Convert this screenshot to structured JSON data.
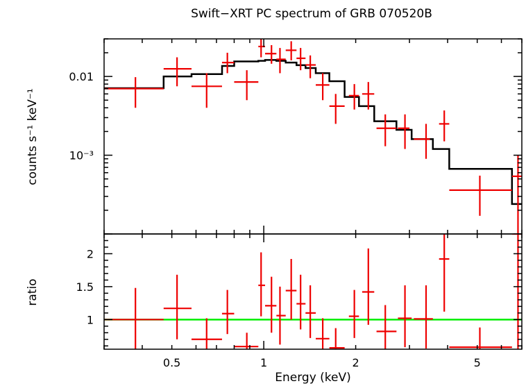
{
  "chart_data": [
    {
      "type": "scatter",
      "title": "Swift−XRT PC spectrum of GRB 070520B",
      "ylabel": "counts s⁻¹ keV⁻¹",
      "xlabel": "",
      "xscale": "log",
      "yscale": "log",
      "xlim": [
        0.3,
        7.0
      ],
      "ylim": [
        0.0001,
        0.03
      ],
      "ytick_labels": [
        {
          "value": 0.01,
          "label": "0.01"
        },
        {
          "value": 0.001,
          "label": "10⁻³"
        }
      ],
      "series": [
        {
          "role": "data",
          "color": "#ee0000",
          "points": [
            {
              "x": 0.38,
              "xlo": 0.3,
              "xhi": 0.47,
              "y": 0.007,
              "ylo": 0.004,
              "yhi": 0.0098
            },
            {
              "x": 0.52,
              "xlo": 0.47,
              "xhi": 0.58,
              "y": 0.0125,
              "ylo": 0.0075,
              "yhi": 0.0175
            },
            {
              "x": 0.65,
              "xlo": 0.58,
              "xhi": 0.73,
              "y": 0.0075,
              "ylo": 0.004,
              "yhi": 0.011
            },
            {
              "x": 0.76,
              "xlo": 0.73,
              "xhi": 0.8,
              "y": 0.015,
              "ylo": 0.011,
              "yhi": 0.02
            },
            {
              "x": 0.88,
              "xlo": 0.8,
              "xhi": 0.96,
              "y": 0.0085,
              "ylo": 0.005,
              "yhi": 0.012
            },
            {
              "x": 0.98,
              "xlo": 0.96,
              "xhi": 1.01,
              "y": 0.024,
              "ylo": 0.0175,
              "yhi": 0.03
            },
            {
              "x": 1.06,
              "xlo": 1.01,
              "xhi": 1.1,
              "y": 0.0195,
              "ylo": 0.0145,
              "yhi": 0.025
            },
            {
              "x": 1.13,
              "xlo": 1.1,
              "xhi": 1.18,
              "y": 0.0165,
              "ylo": 0.011,
              "yhi": 0.023
            },
            {
              "x": 1.23,
              "xlo": 1.18,
              "xhi": 1.28,
              "y": 0.0215,
              "ylo": 0.016,
              "yhi": 0.028
            },
            {
              "x": 1.32,
              "xlo": 1.28,
              "xhi": 1.37,
              "y": 0.017,
              "ylo": 0.012,
              "yhi": 0.023
            },
            {
              "x": 1.42,
              "xlo": 1.37,
              "xhi": 1.48,
              "y": 0.014,
              "ylo": 0.0095,
              "yhi": 0.0185
            },
            {
              "x": 1.56,
              "xlo": 1.48,
              "xhi": 1.64,
              "y": 0.0078,
              "ylo": 0.005,
              "yhi": 0.011
            },
            {
              "x": 1.72,
              "xlo": 1.64,
              "xhi": 1.84,
              "y": 0.0042,
              "ylo": 0.0025,
              "yhi": 0.006
            },
            {
              "x": 1.98,
              "xlo": 1.9,
              "xhi": 2.05,
              "y": 0.0057,
              "ylo": 0.0038,
              "yhi": 0.008
            },
            {
              "x": 2.2,
              "xlo": 2.1,
              "xhi": 2.3,
              "y": 0.006,
              "ylo": 0.0038,
              "yhi": 0.0085
            },
            {
              "x": 2.5,
              "xlo": 2.34,
              "xhi": 2.72,
              "y": 0.0022,
              "ylo": 0.0013,
              "yhi": 0.0033
            },
            {
              "x": 2.9,
              "xlo": 2.75,
              "xhi": 3.0,
              "y": 0.0022,
              "ylo": 0.0012,
              "yhi": 0.0033
            },
            {
              "x": 3.4,
              "xlo": 3.1,
              "xhi": 3.5,
              "y": 0.0016,
              "ylo": 0.0009,
              "yhi": 0.0025
            },
            {
              "x": 3.9,
              "xlo": 3.75,
              "xhi": 4.05,
              "y": 0.0025,
              "ylo": 0.0015,
              "yhi": 0.0037
            },
            {
              "x": 5.1,
              "xlo": 4.05,
              "xhi": 6.5,
              "y": 0.00036,
              "ylo": 0.00017,
              "yhi": 0.00055
            },
            {
              "x": 6.8,
              "xlo": 6.5,
              "xhi": 7.0,
              "y": 0.00054,
              "ylo": 0.0001,
              "yhi": 0.001
            }
          ]
        },
        {
          "role": "model",
          "color": "#000000",
          "steps": [
            {
              "x0": 0.3,
              "x1": 0.47,
              "y": 0.0071
            },
            {
              "x0": 0.47,
              "x1": 0.58,
              "y": 0.01
            },
            {
              "x0": 0.58,
              "x1": 0.73,
              "y": 0.0107
            },
            {
              "x0": 0.73,
              "x1": 0.8,
              "y": 0.0136
            },
            {
              "x0": 0.8,
              "x1": 0.96,
              "y": 0.0155
            },
            {
              "x0": 0.96,
              "x1": 1.01,
              "y": 0.0158
            },
            {
              "x0": 1.01,
              "x1": 1.1,
              "y": 0.0162
            },
            {
              "x0": 1.1,
              "x1": 1.18,
              "y": 0.0158
            },
            {
              "x0": 1.18,
              "x1": 1.28,
              "y": 0.015
            },
            {
              "x0": 1.28,
              "x1": 1.37,
              "y": 0.0139
            },
            {
              "x0": 1.37,
              "x1": 1.48,
              "y": 0.0128
            },
            {
              "x0": 1.48,
              "x1": 1.64,
              "y": 0.011
            },
            {
              "x0": 1.64,
              "x1": 1.84,
              "y": 0.0087
            },
            {
              "x0": 1.84,
              "x1": 2.05,
              "y": 0.0055
            },
            {
              "x0": 2.05,
              "x1": 2.3,
              "y": 0.0042
            },
            {
              "x0": 2.3,
              "x1": 2.72,
              "y": 0.0027
            },
            {
              "x0": 2.72,
              "x1": 3.05,
              "y": 0.0021
            },
            {
              "x0": 3.05,
              "x1": 3.58,
              "y": 0.0016
            },
            {
              "x0": 3.58,
              "x1": 4.05,
              "y": 0.0012
            },
            {
              "x0": 4.05,
              "x1": 6.5,
              "y": 0.00067
            },
            {
              "x0": 6.5,
              "x1": 7.0,
              "y": 0.00024
            }
          ]
        }
      ]
    },
    {
      "type": "scatter",
      "title": "",
      "ylabel": "ratio",
      "xlabel": "Energy (keV)",
      "xscale": "log",
      "yscale": "linear",
      "xlim": [
        0.3,
        7.0
      ],
      "ylim": [
        0.55,
        2.3
      ],
      "xtick_labels": [
        {
          "value": 0.5,
          "label": "0.5"
        },
        {
          "value": 1,
          "label": "1"
        },
        {
          "value": 2,
          "label": "2"
        },
        {
          "value": 5,
          "label": "5"
        }
      ],
      "ytick_labels": [
        {
          "value": 1,
          "label": "1"
        },
        {
          "value": 1.5,
          "label": "1.5"
        },
        {
          "value": 2,
          "label": "2"
        }
      ],
      "reference_line": {
        "y": 1.0,
        "color": "#00ee00"
      },
      "series": [
        {
          "role": "ratio",
          "color": "#ee0000",
          "points": [
            {
              "x": 0.38,
              "xlo": 0.3,
              "xhi": 0.47,
              "y": 1.0,
              "ylo": 0.55,
              "yhi": 1.48
            },
            {
              "x": 0.52,
              "xlo": 0.47,
              "xhi": 0.58,
              "y": 1.17,
              "ylo": 0.7,
              "yhi": 1.68
            },
            {
              "x": 0.65,
              "xlo": 0.58,
              "xhi": 0.73,
              "y": 0.7,
              "ylo": 0.55,
              "yhi": 1.02
            },
            {
              "x": 0.76,
              "xlo": 0.73,
              "xhi": 0.8,
              "y": 1.09,
              "ylo": 0.78,
              "yhi": 1.45
            },
            {
              "x": 0.88,
              "xlo": 0.8,
              "xhi": 0.96,
              "y": 0.59,
              "ylo": 0.55,
              "yhi": 0.8
            },
            {
              "x": 0.98,
              "xlo": 0.96,
              "xhi": 1.01,
              "y": 1.52,
              "ylo": 1.05,
              "yhi": 2.02
            },
            {
              "x": 1.06,
              "xlo": 1.01,
              "xhi": 1.1,
              "y": 1.21,
              "ylo": 0.8,
              "yhi": 1.65
            },
            {
              "x": 1.13,
              "xlo": 1.1,
              "xhi": 1.18,
              "y": 1.06,
              "ylo": 0.62,
              "yhi": 1.5
            },
            {
              "x": 1.23,
              "xlo": 1.18,
              "xhi": 1.28,
              "y": 1.44,
              "ylo": 1.0,
              "yhi": 1.92
            },
            {
              "x": 1.32,
              "xlo": 1.28,
              "xhi": 1.37,
              "y": 1.24,
              "ylo": 0.85,
              "yhi": 1.68
            },
            {
              "x": 1.42,
              "xlo": 1.37,
              "xhi": 1.48,
              "y": 1.1,
              "ylo": 0.72,
              "yhi": 1.52
            },
            {
              "x": 1.56,
              "xlo": 1.48,
              "xhi": 1.64,
              "y": 0.71,
              "ylo": 0.55,
              "yhi": 1.02
            },
            {
              "x": 1.72,
              "xlo": 1.64,
              "xhi": 1.84,
              "y": 0.57,
              "ylo": 0.55,
              "yhi": 0.87
            },
            {
              "x": 1.98,
              "xlo": 1.9,
              "xhi": 2.05,
              "y": 1.05,
              "ylo": 0.72,
              "yhi": 1.45
            },
            {
              "x": 2.2,
              "xlo": 2.1,
              "xhi": 2.3,
              "y": 1.42,
              "ylo": 0.92,
              "yhi": 2.08
            },
            {
              "x": 2.5,
              "xlo": 2.34,
              "xhi": 2.72,
              "y": 0.82,
              "ylo": 0.55,
              "yhi": 1.22
            },
            {
              "x": 2.9,
              "xlo": 2.75,
              "xhi": 3.05,
              "y": 1.02,
              "ylo": 0.58,
              "yhi": 1.52
            },
            {
              "x": 3.4,
              "xlo": 3.1,
              "xhi": 3.58,
              "y": 1.01,
              "ylo": 0.56,
              "yhi": 1.52
            },
            {
              "x": 3.9,
              "xlo": 3.75,
              "xhi": 4.05,
              "y": 1.92,
              "ylo": 1.12,
              "yhi": 2.3
            },
            {
              "x": 5.1,
              "xlo": 4.05,
              "xhi": 6.5,
              "y": 0.58,
              "ylo": 0.55,
              "yhi": 0.88
            },
            {
              "x": 6.8,
              "xlo": 6.5,
              "xhi": 7.0,
              "y": 2.3,
              "ylo": 0.55,
              "yhi": 2.3
            }
          ]
        }
      ]
    }
  ]
}
